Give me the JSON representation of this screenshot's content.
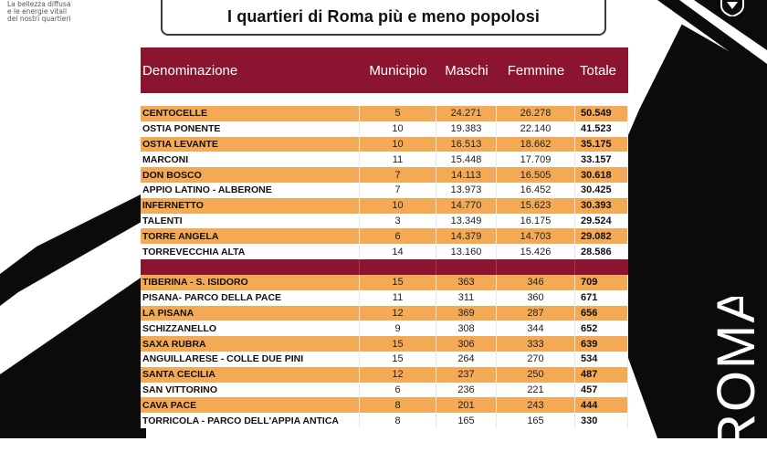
{
  "brand": {
    "tagline": [
      "La bellezza diffusa",
      "e le energie vitali",
      "dei nostri quartieri"
    ],
    "side_text": "ROMA",
    "accent": "#8b1530",
    "stripe": "#f4aa55"
  },
  "title": "I quartieri di Roma più e meno popolosi",
  "table": {
    "headers": [
      "Denominazione",
      "Municipio",
      "Maschi",
      "Femmine",
      "Totale"
    ],
    "top": [
      {
        "name": "CENTOCELLE",
        "municipio": "5",
        "maschi": "24.271",
        "femmine": "26.278",
        "totale": "50.549"
      },
      {
        "name": "OSTIA PONENTE",
        "municipio": "10",
        "maschi": "19.383",
        "femmine": "22.140",
        "totale": "41.523"
      },
      {
        "name": "OSTIA LEVANTE",
        "municipio": "10",
        "maschi": "16.513",
        "femmine": "18.662",
        "totale": "35.175"
      },
      {
        "name": "MARCONI",
        "municipio": "11",
        "maschi": "15.448",
        "femmine": "17.709",
        "totale": "33.157"
      },
      {
        "name": "DON BOSCO",
        "municipio": "7",
        "maschi": "14.113",
        "femmine": "16.505",
        "totale": "30.618"
      },
      {
        "name": "APPIO LATINO - ALBERONE",
        "municipio": "7",
        "maschi": "13.973",
        "femmine": "16.452",
        "totale": "30.425"
      },
      {
        "name": "INFERNETTO",
        "municipio": "10",
        "maschi": "14.770",
        "femmine": "15.623",
        "totale": "30.393"
      },
      {
        "name": "TALENTI",
        "municipio": "3",
        "maschi": "13.349",
        "femmine": "16.175",
        "totale": "29.524"
      },
      {
        "name": "TORRE ANGELA",
        "municipio": "6",
        "maschi": "14.379",
        "femmine": "14.703",
        "totale": "29.082"
      },
      {
        "name": "TORREVECCHIA ALTA",
        "municipio": "14",
        "maschi": "13.160",
        "femmine": "15.426",
        "totale": "28.586"
      }
    ],
    "bottom": [
      {
        "name": "TIBERINA - S. ISIDORO",
        "municipio": "15",
        "maschi": "363",
        "femmine": "346",
        "totale": "709"
      },
      {
        "name": "PISANA- PARCO DELLA PACE",
        "municipio": "11",
        "maschi": "311",
        "femmine": "360",
        "totale": "671"
      },
      {
        "name": "LA PISANA",
        "municipio": "12",
        "maschi": "369",
        "femmine": "287",
        "totale": "656"
      },
      {
        "name": "SCHIZZANELLO",
        "municipio": "9",
        "maschi": "308",
        "femmine": "344",
        "totale": "652"
      },
      {
        "name": "SAXA RUBRA",
        "municipio": "15",
        "maschi": "306",
        "femmine": "333",
        "totale": "639"
      },
      {
        "name": "ANGUILLARESE - COLLE DUE PINI",
        "municipio": "15",
        "maschi": "264",
        "femmine": "270",
        "totale": "534"
      },
      {
        "name": "SANTA CECILIA",
        "municipio": "12",
        "maschi": "237",
        "femmine": "250",
        "totale": "487"
      },
      {
        "name": "SAN VITTORINO",
        "municipio": "6",
        "maschi": "236",
        "femmine": "221",
        "totale": "457"
      },
      {
        "name": "CAVA PACE",
        "municipio": "8",
        "maschi": "201",
        "femmine": "243",
        "totale": "444"
      },
      {
        "name": "TORRICOLA - PARCO DELL'APPIA ANTICA",
        "municipio": "8",
        "maschi": "165",
        "femmine": "165",
        "totale": "330"
      }
    ]
  }
}
